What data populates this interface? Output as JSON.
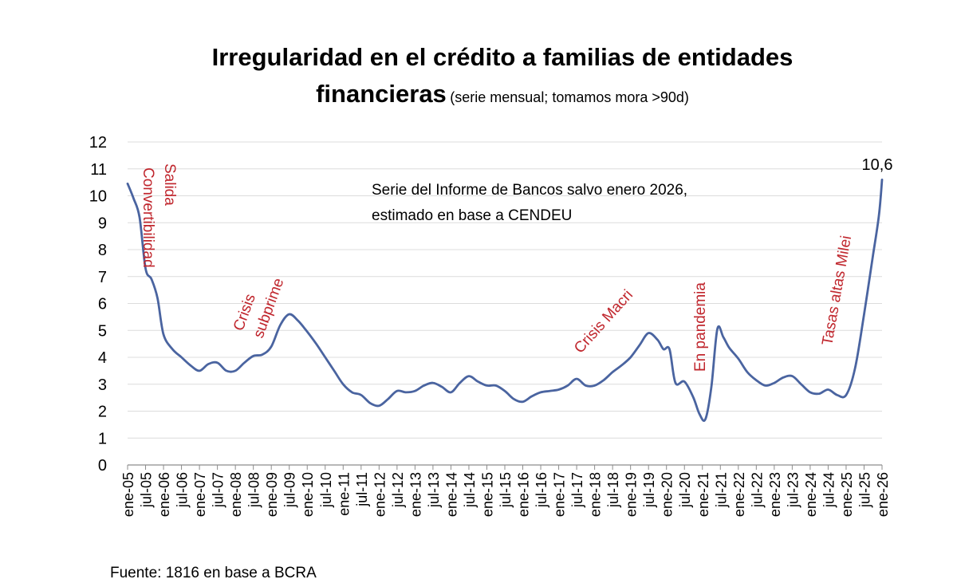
{
  "chart_data": {
    "type": "line",
    "title": "Irregularidad en el crédito a familias de entidades financieras",
    "title_line1": "Irregularidad en el crédito a familias de entidades",
    "title_line2": "financieras",
    "subtitle": "(serie mensual; tomamos mora >90d)",
    "xlabel": "",
    "ylabel": "",
    "ylim": [
      0,
      12
    ],
    "y_ticks": [
      "0",
      "1",
      "2",
      "3",
      "4",
      "5",
      "6",
      "7",
      "8",
      "9",
      "10",
      "11",
      "12"
    ],
    "x_ticks": [
      "ene-05",
      "jul-05",
      "ene-06",
      "jul-06",
      "ene-07",
      "jul-07",
      "ene-08",
      "jul-08",
      "ene-09",
      "jul-09",
      "ene-10",
      "jul-10",
      "ene-11",
      "jul-11",
      "ene-12",
      "jul-12",
      "ene-13",
      "jul-13",
      "ene-14",
      "jul-14",
      "ene-15",
      "jul-15",
      "ene-16",
      "jul-16",
      "ene-17",
      "jul-17",
      "ene-18",
      "jul-18",
      "ene-19",
      "jul-19",
      "ene-20",
      "jul-20",
      "ene-21",
      "jul-21",
      "ene-22",
      "jul-22",
      "ene-23",
      "jul-23",
      "ene-24",
      "jul-24",
      "ene-25",
      "jul-25",
      "ene-26"
    ],
    "grid": true,
    "legend": "none",
    "line_color": "#4a64a0",
    "annotation_color": "#c0262d",
    "series": [
      {
        "x": [
          "ene-05",
          "mar-05",
          "may-05",
          "jul-05",
          "sep-05",
          "nov-05",
          "ene-06",
          "abr-06",
          "jul-06",
          "oct-06",
          "ene-07",
          "abr-07",
          "jul-07",
          "oct-07",
          "ene-08",
          "abr-08",
          "jul-08",
          "oct-08",
          "ene-09",
          "abr-09",
          "jul-09",
          "oct-09",
          "ene-10",
          "abr-10",
          "jul-10",
          "oct-10",
          "ene-11",
          "abr-11",
          "jul-11",
          "oct-11",
          "ene-12",
          "abr-12",
          "jul-12",
          "oct-12",
          "ene-13",
          "abr-13",
          "jul-13",
          "oct-13",
          "ene-14",
          "abr-14",
          "jul-14",
          "oct-14",
          "ene-15",
          "abr-15",
          "jul-15",
          "oct-15",
          "ene-16",
          "abr-16",
          "jul-16",
          "oct-16",
          "ene-17",
          "abr-17",
          "jul-17",
          "oct-17",
          "ene-18",
          "abr-18",
          "jul-18",
          "oct-18",
          "ene-19",
          "abr-19",
          "jul-19",
          "oct-19",
          "dic-19",
          "feb-20",
          "abr-20",
          "jul-20",
          "oct-20",
          "dic-20",
          "feb-21",
          "abr-21",
          "jun-21",
          "ago-21",
          "oct-21",
          "ene-22",
          "abr-22",
          "jul-22",
          "oct-22",
          "ene-23",
          "abr-23",
          "jul-23",
          "oct-23",
          "ene-24",
          "abr-24",
          "jul-24",
          "oct-24",
          "ene-25",
          "abr-25",
          "jul-25",
          "oct-25",
          "dic-25",
          "ene-26"
        ],
        "values": [
          10.45,
          9.9,
          9.2,
          7.3,
          6.9,
          6.2,
          4.85,
          4.3,
          4.0,
          3.7,
          3.5,
          3.75,
          3.8,
          3.5,
          3.5,
          3.8,
          4.05,
          4.1,
          4.4,
          5.2,
          5.6,
          5.35,
          4.95,
          4.5,
          4.0,
          3.5,
          3.0,
          2.7,
          2.6,
          2.3,
          2.2,
          2.45,
          2.75,
          2.7,
          2.75,
          2.95,
          3.05,
          2.9,
          2.7,
          3.05,
          3.3,
          3.1,
          2.95,
          2.95,
          2.75,
          2.45,
          2.35,
          2.55,
          2.7,
          2.75,
          2.8,
          2.95,
          3.2,
          2.95,
          2.95,
          3.15,
          3.45,
          3.7,
          4.0,
          4.45,
          4.9,
          4.65,
          4.3,
          4.3,
          3.05,
          3.1,
          2.5,
          1.9,
          1.7,
          2.9,
          5.05,
          4.75,
          4.35,
          3.95,
          3.45,
          3.15,
          2.95,
          3.05,
          3.25,
          3.3,
          3.0,
          2.7,
          2.65,
          2.8,
          2.6,
          2.6,
          3.6,
          5.6,
          7.8,
          9.3,
          10.6
        ]
      }
    ],
    "annotations": {
      "salida_line1": "Salida",
      "salida_line2": "Convertibilidad",
      "crisis_line1": "Crisis",
      "crisis_line2": "subprime",
      "macri": "Crisis Macri",
      "pandemia": "En pandemia",
      "milei": "Tasas altas Milei",
      "note_line1": "Serie del Informe de Bancos salvo enero 2026,",
      "note_line2": "estimado en base a CENDEU",
      "last_value": "10,6"
    }
  },
  "source": "Fuente: 1816 en base a BCRA"
}
